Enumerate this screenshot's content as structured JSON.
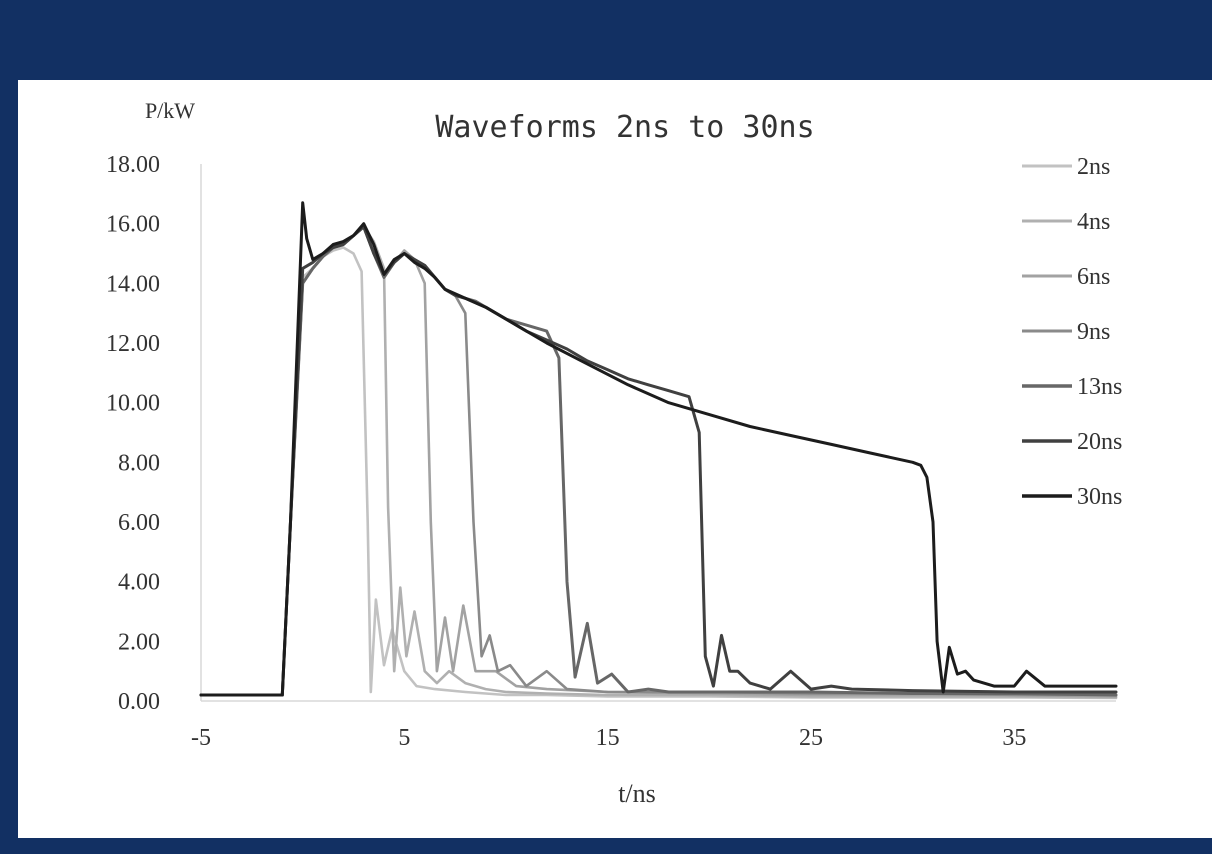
{
  "chart_data": {
    "type": "line",
    "title": "Waveforms 2ns to 30ns",
    "xlabel": "t/ns",
    "ylabel": "P/kW",
    "xlim": [
      -5,
      40
    ],
    "ylim": [
      0,
      18
    ],
    "x_ticks": [
      -5,
      5,
      15,
      25,
      35
    ],
    "y_ticks": [
      0,
      2,
      4,
      6,
      8,
      10,
      12,
      14,
      16,
      18
    ],
    "y_tick_labels": [
      "0.00",
      "2.00",
      "4.00",
      "6.00",
      "8.00",
      "10.00",
      "12.00",
      "14.00",
      "16.00",
      "18.00"
    ],
    "grid": false,
    "legend_position": "right",
    "series": [
      {
        "name": "2ns",
        "color": "#c2c2c2",
        "x": [
          -5,
          -1,
          -0.6,
          0,
          0.5,
          1,
          1.5,
          2,
          2.5,
          2.9,
          3.2,
          3.35,
          3.6,
          4.0,
          4.4,
          5.0,
          5.6,
          6.5,
          8,
          10,
          12,
          15,
          20,
          25,
          30,
          35,
          40
        ],
        "y": [
          0.2,
          0.2,
          6,
          14.2,
          14.5,
          14.9,
          15.1,
          15.2,
          15.0,
          14.4,
          6.0,
          0.3,
          3.4,
          1.2,
          2.4,
          1.0,
          0.5,
          0.4,
          0.3,
          0.2,
          0.2,
          0.15,
          0.15,
          0.12,
          0.12,
          0.12,
          0.1
        ]
      },
      {
        "name": "4ns",
        "color": "#b0b0b0",
        "x": [
          -5,
          -1,
          -0.6,
          0,
          0.5,
          1,
          1.5,
          2,
          2.5,
          3,
          3.5,
          4.0,
          4.2,
          4.5,
          4.8,
          5.1,
          5.5,
          6.0,
          6.6,
          7.2,
          8,
          9,
          10,
          12,
          15,
          20,
          25,
          30,
          35,
          40
        ],
        "y": [
          0.2,
          0.2,
          6,
          14.0,
          14.5,
          14.9,
          15.2,
          15.3,
          15.6,
          15.9,
          15.4,
          14.5,
          6.5,
          1.0,
          3.8,
          1.5,
          3.0,
          1.0,
          0.6,
          1.0,
          0.6,
          0.4,
          0.3,
          0.25,
          0.2,
          0.2,
          0.15,
          0.15,
          0.15,
          0.12
        ]
      },
      {
        "name": "6ns",
        "color": "#a2a2a2",
        "x": [
          -5,
          -1,
          -0.6,
          0,
          0.5,
          1,
          1.5,
          2,
          2.5,
          3,
          3.5,
          4,
          4.5,
          5,
          5.5,
          6.0,
          6.3,
          6.6,
          7.0,
          7.4,
          7.9,
          8.5,
          9.5,
          10.5,
          12,
          15,
          20,
          25,
          30,
          35,
          40
        ],
        "y": [
          0.2,
          0.2,
          6,
          14.0,
          14.5,
          14.9,
          15.2,
          15.3,
          15.6,
          15.9,
          15.0,
          14.2,
          14.7,
          15.1,
          14.8,
          14.0,
          6.0,
          1.0,
          2.8,
          1.0,
          3.2,
          1.0,
          1.0,
          0.5,
          0.4,
          0.3,
          0.25,
          0.2,
          0.2,
          0.2,
          0.15
        ]
      },
      {
        "name": "9ns",
        "color": "#8a8a8a",
        "x": [
          -5,
          -1,
          -0.6,
          0,
          0.5,
          1,
          1.5,
          2,
          2.5,
          3,
          3.5,
          4,
          4.5,
          5,
          5.5,
          6,
          6.5,
          7,
          7.5,
          8.0,
          8.4,
          8.8,
          9.2,
          9.6,
          10.2,
          11,
          12,
          13,
          15,
          20,
          25,
          30,
          35,
          40
        ],
        "y": [
          0.2,
          0.2,
          6,
          14.0,
          14.5,
          14.9,
          15.2,
          15.3,
          15.6,
          15.9,
          15.0,
          14.2,
          14.7,
          15.0,
          14.8,
          14.6,
          14.2,
          13.8,
          13.6,
          13.0,
          6.0,
          1.5,
          2.2,
          1.0,
          1.2,
          0.5,
          1.0,
          0.4,
          0.3,
          0.3,
          0.25,
          0.25,
          0.2,
          0.2
        ]
      },
      {
        "name": "13ns",
        "color": "#676767",
        "x": [
          -5,
          -1,
          -0.6,
          0,
          0.5,
          1,
          1.5,
          2,
          2.5,
          3,
          3.5,
          4,
          4.5,
          5,
          5.5,
          6,
          6.5,
          7,
          7.5,
          8,
          8.5,
          9,
          10,
          11,
          12,
          12.6,
          13.0,
          13.4,
          14,
          14.5,
          15.2,
          16,
          17,
          18,
          20,
          25,
          30,
          35,
          40
        ],
        "y": [
          0.2,
          0.2,
          6,
          14.0,
          14.5,
          14.9,
          15.2,
          15.3,
          15.6,
          15.9,
          15.0,
          14.2,
          14.7,
          15.0,
          14.8,
          14.6,
          14.2,
          13.8,
          13.6,
          13.5,
          13.4,
          13.2,
          12.8,
          12.6,
          12.4,
          11.5,
          4.0,
          0.8,
          2.6,
          0.6,
          0.9,
          0.3,
          0.4,
          0.3,
          0.3,
          0.3,
          0.25,
          0.25,
          0.2
        ]
      },
      {
        "name": "20ns",
        "color": "#404040",
        "x": [
          -5,
          -1,
          -0.6,
          0,
          0.5,
          1,
          1.5,
          2,
          2.5,
          3,
          3.5,
          4,
          4.5,
          5,
          5.5,
          6,
          6.5,
          7,
          7.5,
          8,
          9,
          10,
          11,
          12,
          13,
          14,
          15,
          16,
          17,
          18,
          19,
          19.5,
          19.8,
          20.2,
          20.6,
          21.0,
          21.4,
          22,
          23,
          24,
          25,
          26,
          27,
          30,
          35,
          40
        ],
        "y": [
          0.2,
          0.2,
          6,
          14.5,
          14.7,
          15.0,
          15.2,
          15.3,
          15.6,
          15.9,
          15.0,
          14.3,
          14.7,
          15.0,
          14.8,
          14.6,
          14.2,
          13.8,
          13.6,
          13.5,
          13.2,
          12.8,
          12.4,
          12.1,
          11.8,
          11.4,
          11.1,
          10.8,
          10.6,
          10.4,
          10.2,
          9.0,
          1.5,
          0.5,
          2.2,
          1.0,
          1.0,
          0.6,
          0.4,
          1.0,
          0.4,
          0.5,
          0.4,
          0.35,
          0.3,
          0.3
        ]
      },
      {
        "name": "30ns",
        "color": "#1c1c1c",
        "x": [
          -5,
          -1,
          -0.6,
          0,
          0.2,
          0.5,
          1,
          1.5,
          2,
          2.5,
          3,
          3.5,
          4,
          4.5,
          5,
          5.5,
          6,
          6.5,
          7,
          8,
          9,
          10,
          12,
          14,
          16,
          18,
          20,
          22,
          24,
          26,
          28,
          30,
          30.4,
          30.7,
          31.0,
          31.2,
          31.5,
          31.8,
          32.2,
          32.6,
          33,
          34,
          35,
          35.6,
          36.5,
          37.5,
          38.5,
          40
        ],
        "y": [
          0.2,
          0.2,
          6,
          16.7,
          15.5,
          14.8,
          15.0,
          15.3,
          15.4,
          15.6,
          16.0,
          15.3,
          14.3,
          14.8,
          15.0,
          14.7,
          14.5,
          14.2,
          13.8,
          13.5,
          13.2,
          12.8,
          12.0,
          11.3,
          10.6,
          10.0,
          9.6,
          9.2,
          8.9,
          8.6,
          8.3,
          8.0,
          7.9,
          7.5,
          6.0,
          2.0,
          0.3,
          1.8,
          0.9,
          1.0,
          0.7,
          0.5,
          0.5,
          1.0,
          0.5,
          0.5,
          0.5,
          0.5
        ]
      }
    ]
  }
}
